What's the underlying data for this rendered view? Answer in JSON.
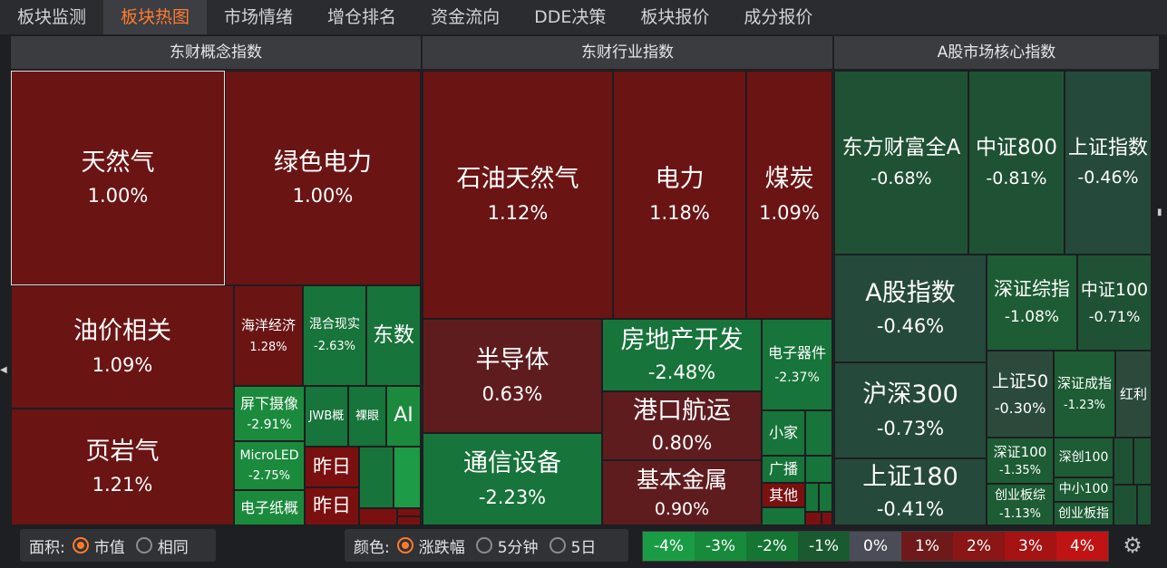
{
  "tabs": [
    {
      "label": "板块监测",
      "active": false
    },
    {
      "label": "板块热图",
      "active": true
    },
    {
      "label": "市场情绪",
      "active": false
    },
    {
      "label": "增仓排名",
      "active": false
    },
    {
      "label": "资金流向",
      "active": false
    },
    {
      "label": "DDE决策",
      "active": false
    },
    {
      "label": "板块报价",
      "active": false
    },
    {
      "label": "成分报价",
      "active": false
    }
  ],
  "panels": {
    "concept": "东财概念指数",
    "industry": "东财行业指数",
    "core": "A股市场核心指数"
  },
  "concept": {
    "c1": {
      "name": "天然气",
      "pct": "1.00%"
    },
    "c2": {
      "name": "绿色电力",
      "pct": "1.00%"
    },
    "c3": {
      "name": "油价相关",
      "pct": "1.09%"
    },
    "c4": {
      "name": "页岩气",
      "pct": "1.21%"
    },
    "c5": {
      "name": "海洋经济",
      "pct": "1.28%"
    },
    "c6": {
      "name": "混合现实",
      "pct": "-2.63%"
    },
    "c7": {
      "name": "东数"
    },
    "c8": {
      "name": "屏下摄像",
      "pct": "-2.91%"
    },
    "c9": {
      "name": "JWB概"
    },
    "c10": {
      "name": "裸眼"
    },
    "c11": {
      "name": "AI"
    },
    "c12": {
      "name": "MicroLED",
      "pct": "-2.75%"
    },
    "c13": {
      "name": "昨日"
    },
    "c14": {
      "name": "电子纸概"
    },
    "c15": {
      "name": "昨日"
    }
  },
  "industry": {
    "i1": {
      "name": "石油天然气",
      "pct": "1.12%"
    },
    "i2": {
      "name": "电力",
      "pct": "1.18%"
    },
    "i3": {
      "name": "煤炭",
      "pct": "1.09%"
    },
    "i4": {
      "name": "半导体",
      "pct": "0.63%"
    },
    "i5": {
      "name": "房地产开发",
      "pct": "-2.48%"
    },
    "i6": {
      "name": "电子器件",
      "pct": "-2.37%"
    },
    "i7": {
      "name": "通信设备",
      "pct": "-2.23%"
    },
    "i8": {
      "name": "港口航运",
      "pct": "0.80%"
    },
    "i9": {
      "name": "小家"
    },
    "i10": {
      "name": "基本金属",
      "pct": "0.90%"
    },
    "i11": {
      "name": "广播"
    },
    "i12": {
      "name": "其他"
    }
  },
  "core": {
    "k1": {
      "name": "东方财富全A",
      "pct": "-0.68%"
    },
    "k2": {
      "name": "中证800",
      "pct": "-0.81%"
    },
    "k3": {
      "name": "上证指数",
      "pct": "-0.46%"
    },
    "k4": {
      "name": "A股指数",
      "pct": "-0.46%"
    },
    "k5": {
      "name": "深证综指",
      "pct": "-1.08%"
    },
    "k6": {
      "name": "中证100",
      "pct": "-0.71%"
    },
    "k7": {
      "name": "沪深300",
      "pct": "-0.73%"
    },
    "k8": {
      "name": "上证50",
      "pct": "-0.30%"
    },
    "k9": {
      "name": "深证成指",
      "pct": "-1.23%"
    },
    "k10": {
      "name": "红利"
    },
    "k11": {
      "name": "上证180",
      "pct": "-0.41%"
    },
    "k12": {
      "name": "深证100",
      "pct": "-1.35%"
    },
    "k13": {
      "name": "深创100"
    },
    "k14": {
      "name": "中小100"
    },
    "k15": {
      "name": "创业板综",
      "pct": "-1.13%"
    },
    "k16": {
      "name": "创业板指"
    }
  },
  "controls": {
    "area_label": "面积:",
    "area_opt1": "市值",
    "area_opt2": "相同",
    "color_label": "颜色:",
    "color_opt1": "涨跌幅",
    "color_opt2": "5分钟",
    "color_opt3": "5日"
  },
  "legend": [
    {
      "label": "-4%",
      "color": "#1a9c45"
    },
    {
      "label": "-3%",
      "color": "#178a3c"
    },
    {
      "label": "-2%",
      "color": "#157634"
    },
    {
      "label": "-1%",
      "color": "#1a5a30"
    },
    {
      "label": "0%",
      "color": "#4a4d57"
    },
    {
      "label": "1%",
      "color": "#6e1a1a"
    },
    {
      "label": "2%",
      "color": "#8a1616"
    },
    {
      "label": "3%",
      "color": "#a51313"
    },
    {
      "label": "4%",
      "color": "#c01414"
    }
  ],
  "icons": {
    "settings": "gear-icon",
    "left_arrow": "arrow-left-icon",
    "right_arrow": "arrow-right-icon"
  }
}
